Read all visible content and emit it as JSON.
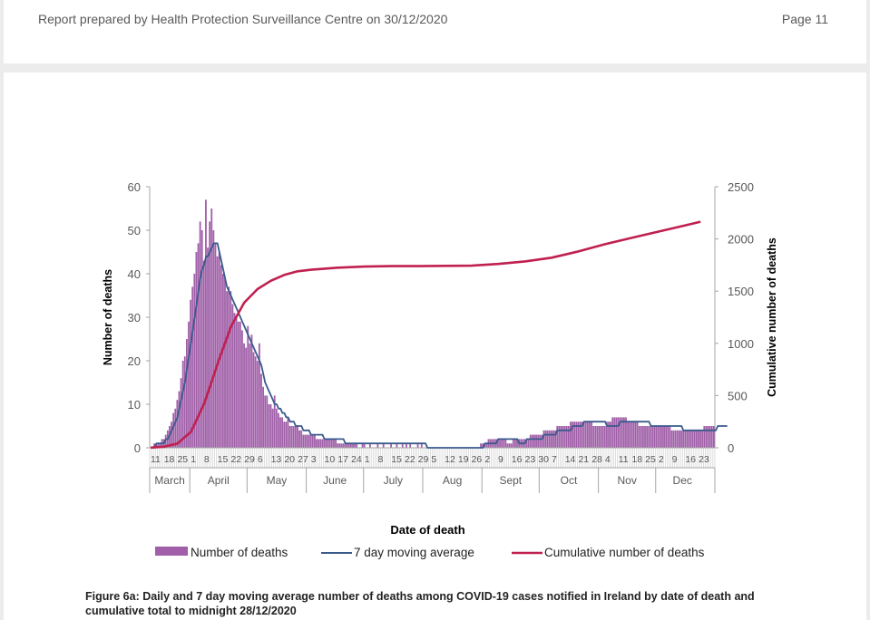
{
  "header": {
    "report_line": "Report prepared by Health Protection Surveillance Centre on 30/12/2020",
    "page_label": "Page 11"
  },
  "caption": "Figure 6a: Daily and 7 day moving average number of deaths among COVID-19 cases notified in Ireland by date of death and cumulative total to midnight 28/12/2020",
  "colors": {
    "bar": "#a05fa8",
    "moving_average": "#3a5a8c",
    "cumulative": "#c0204f",
    "axis": "#a6a6a6",
    "text": "#595959"
  },
  "chart_data": {
    "type": "bar",
    "xlabel": "Date of death",
    "ylabel": "Number of deaths",
    "y2label": "Cumulative number of deaths",
    "ylim": [
      0,
      60
    ],
    "y_ticks": [
      "0",
      "10",
      "20",
      "30",
      "40",
      "50",
      "60"
    ],
    "y2lim": [
      0,
      2500
    ],
    "y2_ticks": [
      "0",
      "500",
      "1000",
      "1500",
      "2000",
      "2500"
    ],
    "start_date": "2020-03-11",
    "end_date": "2020-12-28",
    "day_tick_labels": [
      {
        "label": "11",
        "day": 0
      },
      {
        "label": "18",
        "day": 7
      },
      {
        "label": "25",
        "day": 14
      },
      {
        "label": "1",
        "day": 21
      },
      {
        "label": "8",
        "day": 28
      },
      {
        "label": "15",
        "day": 35
      },
      {
        "label": "22",
        "day": 42
      },
      {
        "label": "29",
        "day": 49
      },
      {
        "label": "6",
        "day": 56
      },
      {
        "label": "13",
        "day": 63
      },
      {
        "label": "20",
        "day": 70
      },
      {
        "label": "27",
        "day": 77
      },
      {
        "label": "3",
        "day": 84
      },
      {
        "label": "10",
        "day": 91
      },
      {
        "label": "17",
        "day": 98
      },
      {
        "label": "24",
        "day": 105
      },
      {
        "label": "1",
        "day": 112
      },
      {
        "label": "8",
        "day": 119
      },
      {
        "label": "15",
        "day": 126
      },
      {
        "label": "22",
        "day": 133
      },
      {
        "label": "29",
        "day": 140
      },
      {
        "label": "5",
        "day": 147
      },
      {
        "label": "12",
        "day": 154
      },
      {
        "label": "19",
        "day": 161
      },
      {
        "label": "26",
        "day": 168
      },
      {
        "label": "2",
        "day": 175
      },
      {
        "label": "9",
        "day": 182
      },
      {
        "label": "16",
        "day": 189
      },
      {
        "label": "23",
        "day": 196
      },
      {
        "label": "30",
        "day": 203
      },
      {
        "label": "7",
        "day": 210
      },
      {
        "label": "14",
        "day": 217
      },
      {
        "label": "21",
        "day": 224
      },
      {
        "label": "28",
        "day": 231
      },
      {
        "label": "4",
        "day": 238
      },
      {
        "label": "11",
        "day": 245
      },
      {
        "label": "18",
        "day": 252
      },
      {
        "label": "25",
        "day": 259
      },
      {
        "label": "2",
        "day": 266
      },
      {
        "label": "9",
        "day": 273
      },
      {
        "label": "16",
        "day": 280
      },
      {
        "label": "23",
        "day": 287
      }
    ],
    "months": [
      {
        "label": "March",
        "start": 0,
        "end": 21
      },
      {
        "label": "April",
        "start": 21,
        "end": 51
      },
      {
        "label": "May",
        "start": 51,
        "end": 82
      },
      {
        "label": "June",
        "start": 82,
        "end": 112
      },
      {
        "label": "July",
        "start": 112,
        "end": 143
      },
      {
        "label": "Aug",
        "start": 143,
        "end": 174
      },
      {
        "label": "Sept",
        "start": 174,
        "end": 204
      },
      {
        "label": "Oct",
        "start": 204,
        "end": 235
      },
      {
        "label": "Nov",
        "start": 235,
        "end": 265
      },
      {
        "label": "Dec",
        "start": 265,
        "end": 293
      }
    ],
    "series": [
      {
        "name": "Number of deaths",
        "type": "bar",
        "values": [
          0,
          0,
          1,
          1,
          1,
          1,
          2,
          2,
          3,
          4,
          5,
          6,
          8,
          9,
          11,
          13,
          16,
          20,
          21,
          25,
          29,
          34,
          37,
          40,
          45,
          47,
          52,
          50,
          43,
          57,
          46,
          52,
          55,
          50,
          47,
          44,
          45,
          42,
          40,
          39,
          36,
          37,
          36,
          33,
          31,
          30,
          29,
          29,
          27,
          24,
          23,
          28,
          24,
          26,
          22,
          21,
          20,
          24,
          17,
          14,
          12,
          12,
          10,
          10,
          9,
          12,
          9,
          8,
          7,
          7,
          6,
          6,
          7,
          5,
          5,
          5,
          5,
          5,
          4,
          4,
          3,
          3,
          3,
          3,
          3,
          3,
          3,
          2,
          2,
          2,
          2,
          2,
          2,
          2,
          2,
          2,
          2,
          2,
          1,
          1,
          1,
          1,
          1,
          1,
          1,
          1,
          1,
          1,
          1,
          0,
          0,
          1,
          1,
          0,
          0,
          1,
          0,
          0,
          0,
          1,
          0,
          0,
          1,
          0,
          0,
          0,
          1,
          0,
          0,
          1,
          0,
          0,
          1,
          0,
          1,
          0,
          1,
          0,
          0,
          0,
          1,
          0,
          1,
          0,
          0,
          0,
          0,
          0,
          0,
          0,
          0,
          0,
          0,
          0,
          0,
          0,
          0,
          0,
          0,
          0,
          0,
          0,
          0,
          0,
          0,
          0,
          0,
          0,
          0,
          0,
          0,
          0,
          0,
          1,
          1,
          1,
          1,
          2,
          2,
          2,
          2,
          2,
          2,
          2,
          2,
          2,
          2,
          1,
          1,
          1,
          2,
          2,
          2,
          2,
          2,
          2,
          2,
          2,
          2,
          3,
          3,
          3,
          3,
          3,
          3,
          3,
          4,
          4,
          4,
          4,
          4,
          4,
          4,
          5,
          5,
          5,
          5,
          5,
          5,
          5,
          6,
          6,
          6,
          6,
          6,
          6,
          6,
          6,
          6,
          6,
          6,
          6,
          5,
          5,
          5,
          5,
          5,
          5,
          5,
          6,
          6,
          6,
          7,
          7,
          7,
          7,
          7,
          7,
          7,
          7,
          6,
          6,
          6,
          6,
          6,
          6,
          5,
          5,
          5,
          5,
          5,
          5,
          5,
          5,
          5,
          5,
          5,
          5,
          5,
          5,
          5,
          5,
          5,
          4,
          4,
          4,
          4,
          4,
          4,
          4,
          4,
          4,
          4,
          4,
          4,
          4,
          4,
          4,
          4,
          4,
          5,
          5,
          5,
          5,
          5,
          5
        ]
      },
      {
        "name": "7 day moving average",
        "type": "line",
        "values": [
          0,
          0,
          0,
          1,
          1,
          1,
          1,
          1,
          2,
          2,
          3,
          4,
          5,
          6,
          7,
          9,
          11,
          13,
          15,
          18,
          21,
          24,
          27,
          30,
          33,
          36,
          39,
          41,
          42,
          44,
          44,
          45,
          46,
          47,
          47,
          47,
          45,
          43,
          41,
          39,
          37,
          36,
          35,
          34,
          33,
          32,
          31,
          30,
          29,
          28,
          27,
          26,
          25,
          24,
          23,
          22,
          21,
          20,
          19,
          17,
          15,
          14,
          13,
          12,
          11,
          10,
          10,
          9,
          9,
          8,
          8,
          7,
          7,
          6,
          6,
          6,
          5,
          5,
          5,
          5,
          4,
          4,
          4,
          4,
          3,
          3,
          3,
          3,
          3,
          3,
          3,
          2,
          2,
          2,
          2,
          2,
          2,
          2,
          2,
          2,
          2,
          2,
          1,
          1,
          1,
          1,
          1,
          1,
          1,
          1,
          1,
          1,
          1,
          1,
          1,
          1,
          1,
          1,
          1,
          1,
          1,
          1,
          1,
          1,
          1,
          1,
          1,
          1,
          1,
          1,
          1,
          1,
          1,
          1,
          1,
          1,
          1,
          1,
          1,
          1,
          1,
          1,
          1,
          1,
          1,
          0,
          0,
          0,
          0,
          0,
          0,
          0,
          0,
          0,
          0,
          0,
          0,
          0,
          0,
          0,
          0,
          0,
          0,
          0,
          0,
          0,
          0,
          0,
          0,
          0,
          0,
          0,
          0,
          0,
          0,
          1,
          1,
          1,
          1,
          1,
          1,
          1,
          2,
          2,
          2,
          2,
          2,
          2,
          2,
          2,
          2,
          2,
          2,
          1,
          1,
          1,
          1,
          2,
          2,
          2,
          2,
          2,
          2,
          2,
          2,
          2,
          3,
          3,
          3,
          3,
          3,
          3,
          3,
          4,
          4,
          4,
          4,
          4,
          4,
          4,
          4,
          5,
          5,
          5,
          5,
          5,
          5,
          6,
          6,
          6,
          6,
          6,
          6,
          6,
          6,
          6,
          6,
          6,
          6,
          5,
          5,
          5,
          5,
          5,
          5,
          5,
          6,
          6,
          6,
          6,
          6,
          6,
          6,
          6,
          6,
          6,
          6,
          6,
          6,
          6,
          6,
          6,
          5,
          5,
          5,
          5,
          5,
          5,
          5,
          5,
          5,
          5,
          5,
          5,
          5,
          5,
          5,
          5,
          5,
          4,
          4,
          4,
          4,
          4,
          4,
          4,
          4,
          4,
          4,
          4,
          4,
          4,
          4,
          4,
          4,
          4,
          4,
          5,
          5,
          5,
          5,
          5,
          5
        ]
      },
      {
        "name": "Cumulative number of deaths",
        "type": "line",
        "axis": "right",
        "x": [
          0,
          7,
          14,
          21,
          28,
          35,
          42,
          49,
          56,
          63,
          70,
          77,
          84,
          98,
          112,
          126,
          140,
          154,
          168,
          182,
          196,
          210,
          224,
          238,
          252,
          266,
          280,
          288
        ],
        "values": [
          2,
          10,
          40,
          150,
          420,
          800,
          1160,
          1390,
          1520,
          1600,
          1655,
          1690,
          1705,
          1725,
          1735,
          1740,
          1740,
          1742,
          1744,
          1760,
          1785,
          1820,
          1880,
          1950,
          2010,
          2070,
          2130,
          2165
        ]
      }
    ]
  }
}
